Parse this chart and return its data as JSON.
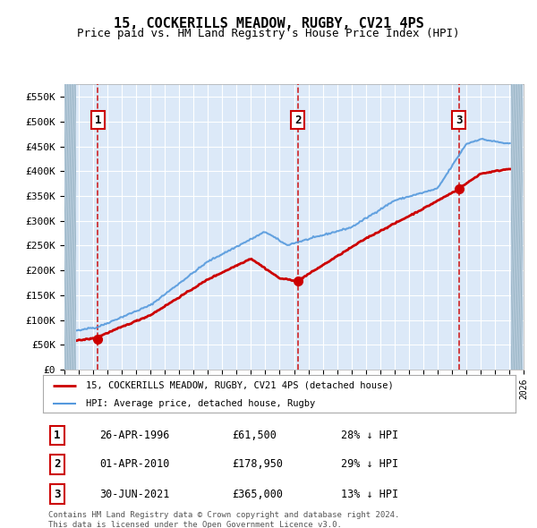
{
  "title": "15, COCKERILLS MEADOW, RUGBY, CV21 4PS",
  "subtitle": "Price paid vs. HM Land Registry's House Price Index (HPI)",
  "plot_bg": "#dce9f8",
  "sale_dates_num": [
    1996.32,
    2010.25,
    2021.5
  ],
  "sale_prices": [
    61500,
    178950,
    365000
  ],
  "sale_labels": [
    "1",
    "2",
    "3"
  ],
  "legend_entries": [
    {
      "label": "15, COCKERILLS MEADOW, RUGBY, CV21 4PS (detached house)",
      "color": "#cc0000",
      "lw": 2
    },
    {
      "label": "HPI: Average price, detached house, Rugby",
      "color": "#5599dd",
      "lw": 1.5
    }
  ],
  "table_rows": [
    {
      "num": "1",
      "date": "26-APR-1996",
      "price": "£61,500",
      "hpi": "28% ↓ HPI"
    },
    {
      "num": "2",
      "date": "01-APR-2010",
      "price": "£178,950",
      "hpi": "29% ↓ HPI"
    },
    {
      "num": "3",
      "date": "30-JUN-2021",
      "price": "£365,000",
      "hpi": "13% ↓ HPI"
    }
  ],
  "footer": "Contains HM Land Registry data © Crown copyright and database right 2024.\nThis data is licensed under the Open Government Licence v3.0.",
  "xmin": 1994,
  "xmax": 2026,
  "ymin": 0,
  "ymax": 575000,
  "yticks": [
    0,
    50000,
    100000,
    150000,
    200000,
    250000,
    300000,
    350000,
    400000,
    450000,
    500000,
    550000
  ],
  "ytick_labels": [
    "£0",
    "£50K",
    "£100K",
    "£150K",
    "£200K",
    "£250K",
    "£300K",
    "£350K",
    "£400K",
    "£450K",
    "£500K",
    "£550K"
  ]
}
